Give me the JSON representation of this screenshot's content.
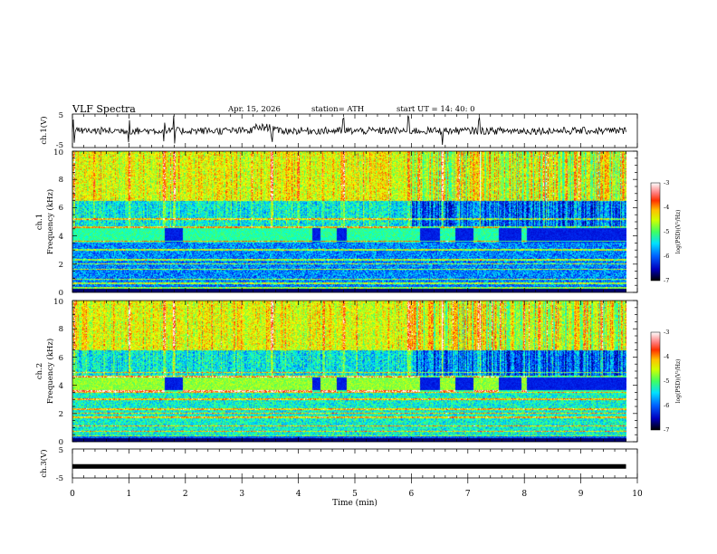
{
  "header": {
    "title": "VLF  Spectra",
    "date": "Apr. 15, 2026",
    "station": "station= ATH",
    "start": "start  UT  =    14: 40: 0"
  },
  "chart_data": {
    "type": "heatmap",
    "title": "VLF  Spectra",
    "xlabel": "Time  (min)",
    "x_range": [
      0,
      10
    ],
    "x_ticks": [
      "0",
      "1",
      "2",
      "3",
      "4",
      "5",
      "6",
      "7",
      "8",
      "9",
      "10"
    ],
    "data_end_min": 9.8,
    "panels": [
      {
        "id": "ch1v",
        "kind": "waveform",
        "ylabel": "ch.1(V)",
        "ylim": [
          -5,
          5
        ],
        "y_ticks": [
          "5",
          "-5"
        ],
        "level": 0
      },
      {
        "id": "ch1",
        "kind": "spectrogram",
        "ylabel_top": "ch.1",
        "ylabel": "Frequency  (kHz)",
        "ylim": [
          0,
          10
        ],
        "y_ticks": [
          "0",
          "2",
          "4",
          "6",
          "8",
          "10"
        ],
        "colorbar": {
          "label": "log(PSD)(V²/Hz)",
          "range": [
            -7,
            -3
          ],
          "ticks": [
            "-3",
            "-4",
            "-5",
            "-6",
            "-7"
          ]
        }
      },
      {
        "id": "ch2",
        "kind": "spectrogram",
        "ylabel_top": "ch.2",
        "ylabel": "Frequency  (kHz)",
        "ylim": [
          0,
          10
        ],
        "y_ticks": [
          "0",
          "2",
          "4",
          "6",
          "8",
          "10"
        ],
        "colorbar": {
          "label": "log(PSD)(V²/Hz)",
          "range": [
            -7,
            -3
          ],
          "ticks": [
            "-3",
            "-4",
            "-5",
            "-6",
            "-7"
          ]
        }
      },
      {
        "id": "ch3v",
        "kind": "waveform",
        "ylabel": "ch.3(V)",
        "ylim": [
          -5,
          5
        ],
        "y_ticks": [
          "5",
          "-5"
        ],
        "level": -1
      }
    ],
    "features": {
      "quiet_intervals_min": [
        [
          1.63,
          1.95
        ],
        [
          4.25,
          4.38
        ],
        [
          4.67,
          4.85
        ],
        [
          6.15,
          6.5
        ],
        [
          6.78,
          7.1
        ],
        [
          7.55,
          7.95
        ],
        [
          8.05,
          9.8
        ]
      ],
      "dense_activity_min": [
        6.0,
        9.8
      ],
      "spike_times_min": [
        0.02,
        1.0,
        1.62,
        1.8,
        3.53,
        4.8,
        5.95,
        6.55,
        7.2
      ]
    },
    "colormap": [
      "#0000a0",
      "#0000ff",
      "#00a0ff",
      "#00ffff",
      "#40ff80",
      "#b0ff20",
      "#ffff00",
      "#ff8000",
      "#ff0000",
      "#ffffff"
    ]
  }
}
